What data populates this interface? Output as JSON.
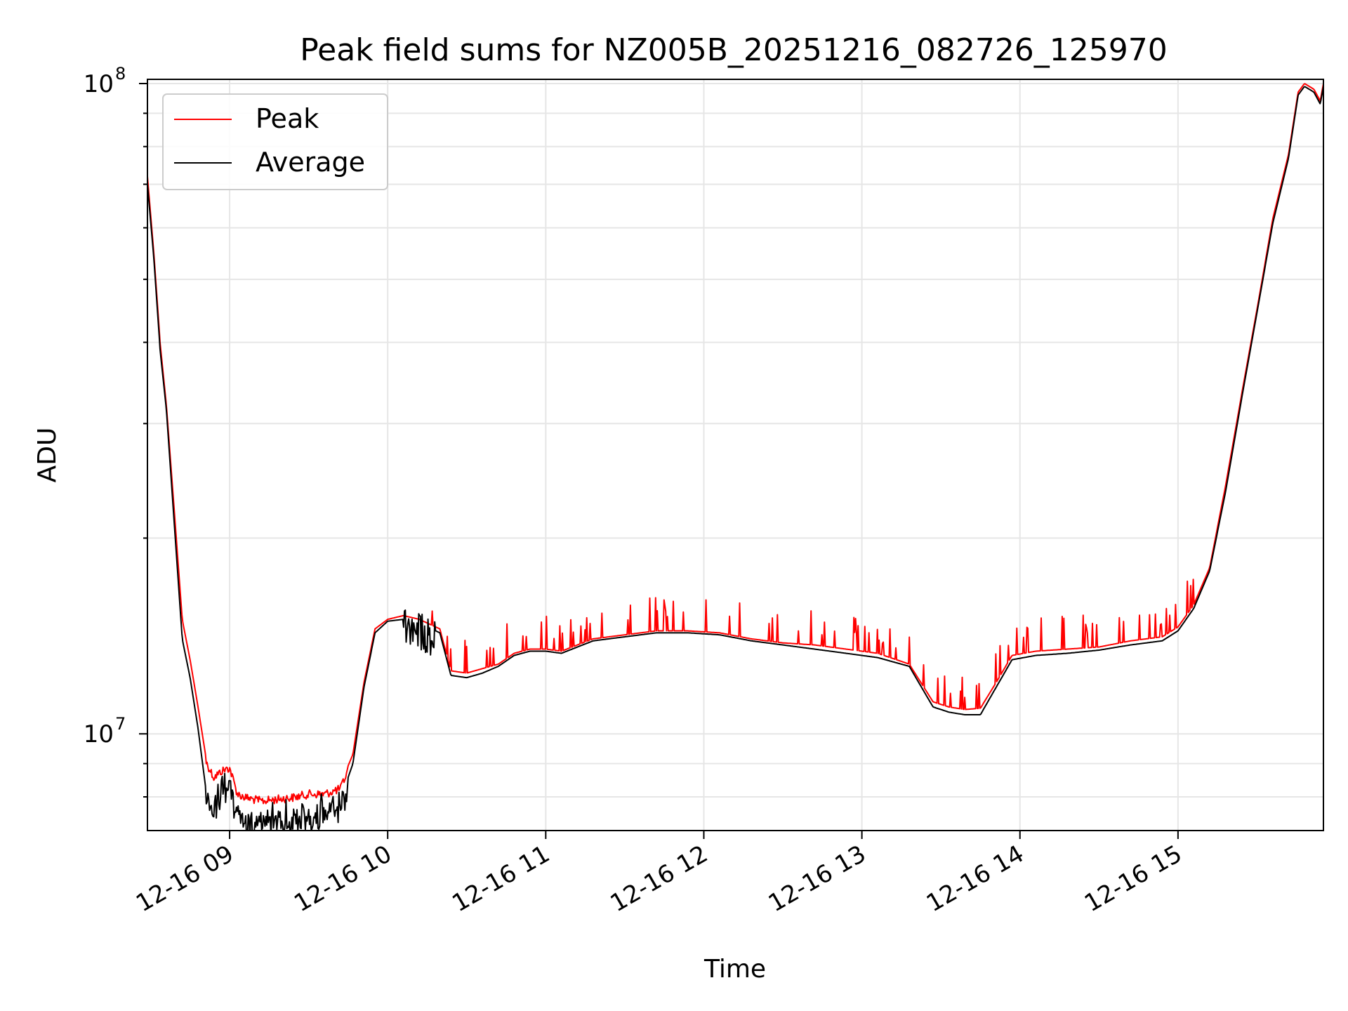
{
  "chart_data": {
    "type": "line",
    "title": "Peak field sums for NZ005B_20251216_082726_125970",
    "xlabel": "Time",
    "ylabel": "ADU",
    "y_scale": "log",
    "ylim": [
      7100000,
      101500000
    ],
    "xlim_hours": [
      8.48,
      15.92
    ],
    "grid": true,
    "legend_position": "top-left",
    "x_ticks": [
      {
        "hour": 9,
        "label": "12-16 09"
      },
      {
        "hour": 10,
        "label": "12-16 10"
      },
      {
        "hour": 11,
        "label": "12-16 11"
      },
      {
        "hour": 12,
        "label": "12-16 12"
      },
      {
        "hour": 13,
        "label": "12-16 13"
      },
      {
        "hour": 14,
        "label": "12-16 14"
      },
      {
        "hour": 15,
        "label": "12-16 15"
      }
    ],
    "y_ticks_major": [
      {
        "value": 10000000,
        "base": "10",
        "exp": "7"
      },
      {
        "value": 100000000,
        "base": "10",
        "exp": "8"
      }
    ],
    "series": [
      {
        "name": "Peak",
        "color": "#ff0000",
        "x_hours": [
          8.48,
          8.52,
          8.56,
          8.6,
          8.65,
          8.7,
          8.75,
          8.8,
          8.85,
          8.9,
          8.95,
          9.0,
          9.05,
          9.1,
          9.2,
          9.3,
          9.4,
          9.5,
          9.6,
          9.7,
          9.78,
          9.85,
          9.92,
          10.0,
          10.1,
          10.2,
          10.33,
          10.4,
          10.5,
          10.6,
          10.7,
          10.8,
          10.9,
          11.0,
          11.1,
          11.2,
          11.3,
          11.5,
          11.7,
          11.9,
          12.1,
          12.3,
          12.5,
          12.7,
          12.9,
          13.1,
          13.3,
          13.45,
          13.55,
          13.65,
          13.75,
          13.85,
          13.95,
          14.1,
          14.3,
          14.5,
          14.7,
          14.9,
          15.0,
          15.1,
          15.2,
          15.3,
          15.4,
          15.5,
          15.6,
          15.7,
          15.76,
          15.8,
          15.86,
          15.9,
          15.92
        ],
        "values": [
          72000000,
          55000000,
          40000000,
          32000000,
          22000000,
          15000000,
          13000000,
          11000000,
          9200000,
          8700000,
          8900000,
          9000000,
          8200000,
          8100000,
          8000000,
          8050000,
          8100000,
          8200000,
          8200000,
          8350000,
          9300000,
          12000000,
          14500000,
          15000000,
          15200000,
          15000000,
          14500000,
          12500000,
          12400000,
          12600000,
          12800000,
          13300000,
          13500000,
          13500000,
          13400000,
          13700000,
          14000000,
          14200000,
          14400000,
          14400000,
          14300000,
          14000000,
          13800000,
          13700000,
          13500000,
          13300000,
          12800000,
          11200000,
          11000000,
          10900000,
          10950000,
          12000000,
          13200000,
          13400000,
          13500000,
          13600000,
          13900000,
          14100000,
          14600000,
          15800000,
          18000000,
          24000000,
          33000000,
          45000000,
          62000000,
          78000000,
          97000000,
          100000000,
          98000000,
          94000000,
          100000000
        ],
        "spike_ranges": [
          [
            10.15,
            15.1
          ]
        ]
      },
      {
        "name": "Average",
        "color": "#000000",
        "x_hours": [
          8.48,
          8.52,
          8.56,
          8.6,
          8.65,
          8.7,
          8.75,
          8.8,
          8.85,
          8.9,
          8.95,
          9.0,
          9.05,
          9.1,
          9.2,
          9.3,
          9.4,
          9.5,
          9.6,
          9.7,
          9.78,
          9.85,
          9.92,
          10.0,
          10.1,
          10.2,
          10.33,
          10.4,
          10.5,
          10.6,
          10.7,
          10.8,
          10.9,
          11.0,
          11.1,
          11.2,
          11.3,
          11.5,
          11.7,
          11.9,
          12.1,
          12.3,
          12.5,
          12.7,
          12.9,
          13.1,
          13.3,
          13.45,
          13.55,
          13.65,
          13.75,
          13.85,
          13.95,
          14.1,
          14.3,
          14.5,
          14.7,
          14.9,
          15.0,
          15.1,
          15.2,
          15.3,
          15.4,
          15.5,
          15.6,
          15.7,
          15.76,
          15.8,
          15.86,
          15.9,
          15.92
        ],
        "values": [
          70000000,
          54000000,
          39000000,
          31500000,
          21000000,
          14000000,
          12200000,
          10200000,
          8200000,
          8000000,
          8300000,
          8500000,
          7700000,
          7500000,
          7550000,
          7600000,
          7650000,
          7700000,
          7800000,
          7900000,
          9000000,
          11800000,
          14300000,
          14900000,
          15000000,
          14800000,
          14300000,
          12300000,
          12200000,
          12400000,
          12700000,
          13200000,
          13400000,
          13400000,
          13300000,
          13600000,
          13900000,
          14100000,
          14300000,
          14300000,
          14200000,
          13900000,
          13700000,
          13500000,
          13300000,
          13100000,
          12700000,
          11000000,
          10800000,
          10700000,
          10700000,
          11800000,
          13000000,
          13200000,
          13300000,
          13450000,
          13700000,
          13900000,
          14400000,
          15600000,
          17800000,
          23500000,
          32500000,
          44500000,
          61000000,
          77000000,
          96000000,
          99000000,
          97000000,
          93000000,
          99000000
        ],
        "noise_ranges": [
          [
            8.85,
            9.75
          ],
          [
            10.1,
            10.3
          ]
        ]
      }
    ]
  }
}
